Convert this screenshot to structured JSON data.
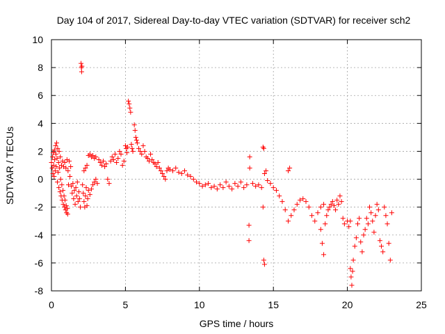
{
  "chart_data": {
    "type": "scatter",
    "title": "Day 104 of 2017, Sidereal Day-to-day VTEC variation (SDTVAR) for receiver sch2",
    "xlabel": "GPS time / hours",
    "ylabel": "SDTVAR / TECUs",
    "xlim": [
      0,
      25
    ],
    "ylim": [
      -8,
      10
    ],
    "xticks": [
      0,
      5,
      10,
      15,
      20,
      25
    ],
    "yticks": [
      -8,
      -6,
      -4,
      -2,
      0,
      2,
      4,
      6,
      8,
      10
    ],
    "grid": true,
    "marker": "+",
    "color": "#ff0000",
    "series": [
      {
        "name": "SDTVAR",
        "points": [
          [
            0.0,
            1.2
          ],
          [
            0.05,
            0.8
          ],
          [
            0.08,
            1.6
          ],
          [
            0.1,
            0.4
          ],
          [
            0.12,
            1.9
          ],
          [
            0.15,
            1.0
          ],
          [
            0.18,
            0.2
          ],
          [
            0.2,
            2.1
          ],
          [
            0.22,
            1.4
          ],
          [
            0.25,
            0.6
          ],
          [
            0.28,
            2.4
          ],
          [
            0.3,
            1.8
          ],
          [
            0.32,
            0.9
          ],
          [
            0.35,
            2.6
          ],
          [
            0.38,
            1.5
          ],
          [
            0.4,
            -0.2
          ],
          [
            0.42,
            2.2
          ],
          [
            0.45,
            0.5
          ],
          [
            0.48,
            1.2
          ],
          [
            0.5,
            -0.6
          ],
          [
            0.52,
            2.0
          ],
          [
            0.55,
            0.8
          ],
          [
            0.58,
            -0.9
          ],
          [
            0.6,
            1.6
          ],
          [
            0.62,
            0.0
          ],
          [
            0.65,
            -1.2
          ],
          [
            0.68,
            1.0
          ],
          [
            0.7,
            -0.4
          ],
          [
            0.72,
            -1.5
          ],
          [
            0.75,
            1.3
          ],
          [
            0.78,
            -0.8
          ],
          [
            0.8,
            -1.8
          ],
          [
            0.82,
            0.9
          ],
          [
            0.85,
            -1.2
          ],
          [
            0.88,
            -2.0
          ],
          [
            0.9,
            1.2
          ],
          [
            0.92,
            -1.5
          ],
          [
            0.95,
            -2.2
          ],
          [
            0.98,
            0.8
          ],
          [
            1.0,
            -1.9
          ],
          [
            1.02,
            -2.4
          ],
          [
            1.05,
            1.4
          ],
          [
            1.08,
            -2.1
          ],
          [
            1.1,
            -2.5
          ],
          [
            1.12,
            0.6
          ],
          [
            1.15,
            -0.4
          ],
          [
            1.2,
            1.3
          ],
          [
            1.25,
            0.2
          ],
          [
            1.3,
            0.9
          ],
          [
            1.35,
            -0.5
          ],
          [
            1.4,
            -1.0
          ],
          [
            1.45,
            -0.3
          ],
          [
            1.5,
            -1.4
          ],
          [
            1.55,
            -0.8
          ],
          [
            1.6,
            -1.8
          ],
          [
            1.65,
            -0.6
          ],
          [
            1.7,
            -1.2
          ],
          [
            1.75,
            -0.2
          ],
          [
            1.8,
            -1.6
          ],
          [
            1.85,
            -0.9
          ],
          [
            1.9,
            -1.4
          ],
          [
            1.95,
            -2.0
          ],
          [
            2.0,
            8.3
          ],
          [
            2.02,
            8.0
          ],
          [
            2.04,
            7.7
          ],
          [
            2.06,
            8.1
          ],
          [
            2.1,
            -0.4
          ],
          [
            2.15,
            -1.0
          ],
          [
            2.2,
            -1.6
          ],
          [
            2.25,
            -2.0
          ],
          [
            2.3,
            -1.2
          ],
          [
            2.35,
            -0.6
          ],
          [
            2.4,
            -1.9
          ],
          [
            2.45,
            -1.4
          ],
          [
            2.5,
            -0.8
          ],
          [
            2.2,
            0.6
          ],
          [
            2.3,
            0.8
          ],
          [
            2.4,
            1.0
          ],
          [
            2.5,
            1.7
          ],
          [
            2.6,
            1.8
          ],
          [
            2.7,
            1.6
          ],
          [
            2.8,
            1.7
          ],
          [
            2.9,
            1.5
          ],
          [
            3.0,
            1.6
          ],
          [
            2.6,
            -1.1
          ],
          [
            2.7,
            -0.7
          ],
          [
            2.8,
            -0.4
          ],
          [
            2.9,
            -0.2
          ],
          [
            3.0,
            0.0
          ],
          [
            3.1,
            -0.3
          ],
          [
            3.2,
            1.4
          ],
          [
            3.3,
            1.2
          ],
          [
            3.4,
            1.0
          ],
          [
            3.5,
            1.3
          ],
          [
            3.6,
            0.9
          ],
          [
            3.7,
            1.1
          ],
          [
            3.8,
            0.0
          ],
          [
            3.9,
            -0.3
          ],
          [
            4.0,
            1.3
          ],
          [
            4.1,
            1.6
          ],
          [
            4.2,
            1.4
          ],
          [
            4.3,
            1.8
          ],
          [
            4.4,
            1.2
          ],
          [
            4.5,
            1.5
          ],
          [
            4.6,
            2.0
          ],
          [
            4.7,
            1.8
          ],
          [
            4.8,
            1.0
          ],
          [
            4.9,
            1.3
          ],
          [
            5.0,
            2.4
          ],
          [
            5.05,
            2.2
          ],
          [
            5.1,
            1.9
          ],
          [
            5.15,
            2.3
          ],
          [
            5.2,
            5.6
          ],
          [
            5.25,
            5.4
          ],
          [
            5.3,
            5.1
          ],
          [
            5.35,
            4.8
          ],
          [
            5.4,
            2.5
          ],
          [
            5.45,
            2.2
          ],
          [
            5.5,
            2.0
          ],
          [
            5.6,
            3.9
          ],
          [
            5.65,
            3.5
          ],
          [
            5.7,
            3.0
          ],
          [
            5.75,
            2.8
          ],
          [
            5.8,
            2.6
          ],
          [
            5.9,
            2.2
          ],
          [
            6.0,
            2.0
          ],
          [
            6.1,
            1.8
          ],
          [
            6.2,
            2.4
          ],
          [
            6.3,
            2.0
          ],
          [
            6.4,
            1.6
          ],
          [
            6.5,
            1.5
          ],
          [
            6.6,
            1.3
          ],
          [
            6.7,
            1.8
          ],
          [
            6.8,
            1.4
          ],
          [
            6.9,
            1.2
          ],
          [
            7.0,
            1.1
          ],
          [
            7.1,
            0.9
          ],
          [
            7.2,
            1.2
          ],
          [
            7.3,
            0.8
          ],
          [
            7.4,
            0.6
          ],
          [
            7.5,
            0.4
          ],
          [
            7.6,
            0.2
          ],
          [
            7.7,
            0.0
          ],
          [
            7.8,
            0.6
          ],
          [
            7.9,
            0.8
          ],
          [
            8.0,
            0.7
          ],
          [
            8.2,
            0.6
          ],
          [
            8.4,
            0.8
          ],
          [
            8.6,
            0.5
          ],
          [
            8.8,
            0.4
          ],
          [
            9.0,
            0.6
          ],
          [
            9.2,
            0.3
          ],
          [
            9.4,
            0.2
          ],
          [
            9.6,
            0.0
          ],
          [
            9.8,
            -0.2
          ],
          [
            10.0,
            -0.3
          ],
          [
            10.2,
            -0.5
          ],
          [
            10.4,
            -0.4
          ],
          [
            10.6,
            -0.3
          ],
          [
            10.8,
            -0.6
          ],
          [
            11.0,
            -0.5
          ],
          [
            11.2,
            -0.7
          ],
          [
            11.4,
            -0.4
          ],
          [
            11.6,
            -0.6
          ],
          [
            11.8,
            -0.2
          ],
          [
            12.0,
            -0.5
          ],
          [
            12.2,
            -0.7
          ],
          [
            12.4,
            -0.3
          ],
          [
            12.6,
            -0.5
          ],
          [
            12.8,
            -0.2
          ],
          [
            13.0,
            -0.6
          ],
          [
            13.2,
            -0.4
          ],
          [
            13.4,
            1.6
          ],
          [
            13.4,
            0.8
          ],
          [
            13.35,
            -3.3
          ],
          [
            13.35,
            -4.4
          ],
          [
            13.6,
            -0.3
          ],
          [
            13.8,
            -0.5
          ],
          [
            14.0,
            -0.4
          ],
          [
            14.2,
            -0.6
          ],
          [
            14.3,
            2.3
          ],
          [
            14.35,
            2.2
          ],
          [
            14.4,
            0.4
          ],
          [
            14.3,
            -2.0
          ],
          [
            14.35,
            -5.8
          ],
          [
            14.4,
            -6.1
          ],
          [
            14.5,
            0.6
          ],
          [
            14.6,
            -0.1
          ],
          [
            14.8,
            -0.3
          ],
          [
            15.0,
            -0.6
          ],
          [
            15.2,
            -0.8
          ],
          [
            15.4,
            -1.2
          ],
          [
            15.6,
            -1.6
          ],
          [
            15.8,
            -2.2
          ],
          [
            16.0,
            -3.0
          ],
          [
            16.0,
            0.6
          ],
          [
            16.1,
            0.8
          ],
          [
            16.2,
            -2.6
          ],
          [
            16.4,
            -2.2
          ],
          [
            16.6,
            -1.8
          ],
          [
            16.8,
            -1.5
          ],
          [
            17.0,
            -1.4
          ],
          [
            17.2,
            -1.6
          ],
          [
            17.4,
            -2.0
          ],
          [
            17.6,
            -2.6
          ],
          [
            17.8,
            -3.0
          ],
          [
            18.0,
            -2.4
          ],
          [
            18.2,
            -2.0
          ],
          [
            18.4,
            -1.8
          ],
          [
            18.2,
            -3.6
          ],
          [
            18.3,
            -4.6
          ],
          [
            18.4,
            -5.4
          ],
          [
            18.5,
            -3.2
          ],
          [
            18.6,
            -2.6
          ],
          [
            18.7,
            -2.2
          ],
          [
            18.8,
            -2.0
          ],
          [
            18.9,
            -1.8
          ],
          [
            19.0,
            -1.6
          ],
          [
            19.1,
            -1.9
          ],
          [
            19.2,
            -2.2
          ],
          [
            19.3,
            -1.5
          ],
          [
            19.4,
            -1.8
          ],
          [
            19.5,
            -1.2
          ],
          [
            19.6,
            -1.6
          ],
          [
            19.7,
            -2.8
          ],
          [
            19.8,
            -3.2
          ],
          [
            20.0,
            -3.0
          ],
          [
            20.1,
            -3.4
          ],
          [
            20.2,
            -3.0
          ],
          [
            20.2,
            -6.4
          ],
          [
            20.25,
            -7.0
          ],
          [
            20.3,
            -7.6
          ],
          [
            20.35,
            -6.6
          ],
          [
            20.4,
            -5.8
          ],
          [
            20.5,
            -4.8
          ],
          [
            20.6,
            -4.2
          ],
          [
            20.7,
            -3.2
          ],
          [
            20.8,
            -2.8
          ],
          [
            20.9,
            -4.5
          ],
          [
            21.0,
            -5.2
          ],
          [
            21.1,
            -4.0
          ],
          [
            21.2,
            -3.6
          ],
          [
            21.3,
            -2.8
          ],
          [
            21.4,
            -3.2
          ],
          [
            21.5,
            -2.0
          ],
          [
            21.6,
            -2.4
          ],
          [
            21.7,
            -3.0
          ],
          [
            21.8,
            -3.8
          ],
          [
            21.9,
            -2.6
          ],
          [
            22.0,
            -1.8
          ],
          [
            22.1,
            -2.2
          ],
          [
            22.2,
            -4.4
          ],
          [
            22.3,
            -4.8
          ],
          [
            22.4,
            -5.2
          ],
          [
            22.5,
            -2.0
          ],
          [
            22.6,
            -2.6
          ],
          [
            22.7,
            -3.2
          ],
          [
            22.8,
            -4.6
          ],
          [
            22.9,
            -5.8
          ],
          [
            23.0,
            -2.4
          ]
        ]
      }
    ]
  }
}
